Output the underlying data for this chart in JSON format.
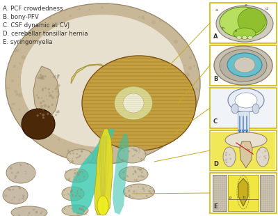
{
  "legend_items": [
    "A. PCF crowdedness",
    "B. bony-PFV",
    "C. CSF dynamic at CVJ",
    "D. cerebellar tonsillar hernia",
    "E. syringomyelia"
  ],
  "legend_fontsize": 6.2,
  "legend_color": "#333333",
  "panel_border_color": "#d4b800",
  "panel_bg_color": "#fffef8",
  "panel_labels": [
    "A",
    "B",
    "C",
    "D",
    "E"
  ],
  "fig_bg": "#ffffff",
  "skull_outer_color": "#c8b898",
  "skull_inner_color": "#e8dcc8",
  "skull_cavity_color": "#e0d4b8",
  "cerebellum_color": "#c8a040",
  "cerebellum_stripes": "#7a5010",
  "cerebellum_center": "#e8e0a0",
  "yellow_stream": "#d8d020",
  "cyan_stream": "#30c8b0",
  "dark_brown": "#4a2808",
  "bone_color": "#d0c4a8",
  "bone_edge": "#9a8a68",
  "connector_color": "#c8a820",
  "panel_A_light_green": "#b8e060",
  "panel_A_dark_green": "#90c040",
  "panel_B_cyan": "#60c0d0",
  "panel_C_blue": "#3070b8",
  "panel_D_yellow": "#f0e040",
  "panel_E_yellow": "#e8d830"
}
